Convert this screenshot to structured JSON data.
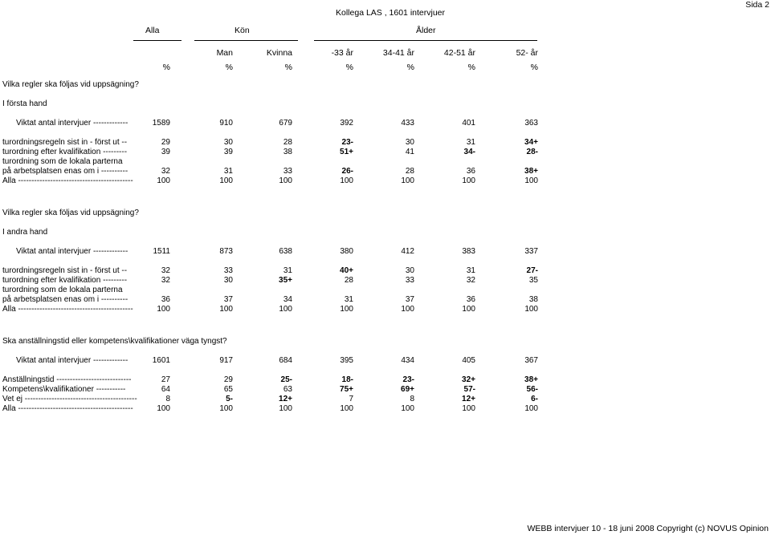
{
  "header": {
    "page_label": "Sida 2",
    "title": "Kollega LAS , 1601 intervjuer",
    "group_alla": "Alla",
    "group_kon": "Kön",
    "group_alder": "Ålder",
    "subcols": [
      "Man",
      "Kvinna",
      "-33 år",
      "34-41 år",
      "42-51 år",
      "52- år"
    ],
    "pct": [
      "%",
      "%",
      "%",
      "%",
      "%",
      "%",
      "%"
    ]
  },
  "sections": [
    {
      "question": "Vilka regler ska följas vid uppsägning?",
      "subheading": "I första hand",
      "weighted_label": "Viktat antal intervjuer  -------------",
      "weighted": [
        "1589",
        "910",
        "679",
        "392",
        "433",
        "401",
        "363"
      ],
      "rows": [
        {
          "label": "turordningsregeln sist in - först ut  --",
          "cells": [
            "29",
            "30",
            "28",
            "23-",
            "30",
            "31",
            "34+"
          ]
        },
        {
          "label": "turordning efter kvalifikation  ---------",
          "cells": [
            "39",
            "39",
            "38",
            "51+",
            "41",
            "34-",
            "28-"
          ]
        },
        {
          "label": "turordning som de lokala parterna",
          "cells": [
            "",
            "",
            "",
            "",
            "",
            "",
            ""
          ]
        },
        {
          "label": "på arbetsplatsen enas om i  ----------",
          "cells": [
            "32",
            "31",
            "33",
            "26-",
            "28",
            "36",
            "38+"
          ]
        },
        {
          "label": "Alla  -------------------------------------------",
          "cells": [
            "100",
            "100",
            "100",
            "100",
            "100",
            "100",
            "100"
          ]
        }
      ]
    },
    {
      "question": "Vilka regler ska följas vid uppsägning?",
      "subheading": "I andra hand",
      "weighted_label": "Viktat antal intervjuer  -------------",
      "weighted": [
        "1511",
        "873",
        "638",
        "380",
        "412",
        "383",
        "337"
      ],
      "rows": [
        {
          "label": "turordningsregeln sist in - först ut  --",
          "cells": [
            "32",
            "33",
            "31",
            "40+",
            "30",
            "31",
            "27-"
          ]
        },
        {
          "label": "turordning efter kvalifikation  ---------",
          "cells": [
            "32",
            "30",
            "35+",
            "28",
            "33",
            "32",
            "35"
          ]
        },
        {
          "label": "turordning som de lokala parterna",
          "cells": [
            "",
            "",
            "",
            "",
            "",
            "",
            ""
          ]
        },
        {
          "label": "på arbetsplatsen enas om i  ----------",
          "cells": [
            "36",
            "37",
            "34",
            "31",
            "37",
            "36",
            "38"
          ]
        },
        {
          "label": "Alla  -------------------------------------------",
          "cells": [
            "100",
            "100",
            "100",
            "100",
            "100",
            "100",
            "100"
          ]
        }
      ]
    },
    {
      "question": "Ska anställningstid eller kompetens\\kvalifikationer väga tyngst?",
      "subheading": "",
      "weighted_label": "Viktat antal intervjuer  -------------",
      "weighted": [
        "1601",
        "917",
        "684",
        "395",
        "434",
        "405",
        "367"
      ],
      "rows": [
        {
          "label": "Anställningstid  ----------------------------",
          "cells": [
            "27",
            "29",
            "25-",
            "18-",
            "23-",
            "32+",
            "38+"
          ]
        },
        {
          "label": "Kompetens\\kvalifikationer  -----------",
          "cells": [
            "64",
            "65",
            "63",
            "75+",
            "69+",
            "57-",
            "56-"
          ]
        },
        {
          "label": "Vet ej  ------------------------------------------",
          "cells": [
            "8",
            "5-",
            "12+",
            "7",
            "8",
            "12+",
            "6-"
          ]
        },
        {
          "label": "Alla  -------------------------------------------",
          "cells": [
            "100",
            "100",
            "100",
            "100",
            "100",
            "100",
            "100"
          ]
        }
      ]
    }
  ],
  "footer": "WEBB intervjuer 10 - 18 juni 2008 Copyright (c) NOVUS Opinion"
}
